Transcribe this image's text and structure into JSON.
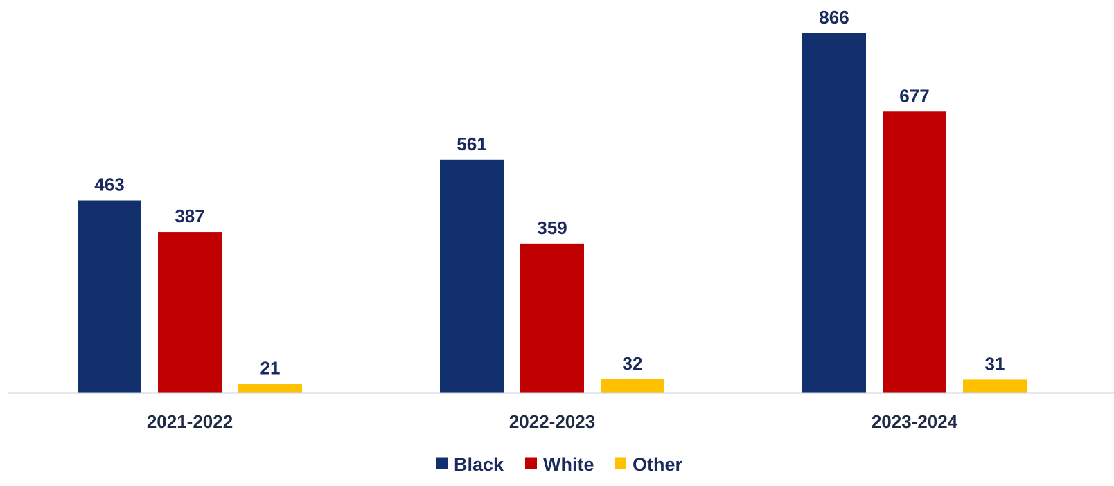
{
  "chart_data": {
    "type": "bar",
    "title": "",
    "xlabel": "",
    "ylabel": "",
    "categories": [
      "2021-2022",
      "2022-2023",
      "2023-2024"
    ],
    "series": [
      {
        "name": "Black",
        "color": "#12306e",
        "values": [
          463,
          561,
          866
        ]
      },
      {
        "name": "White",
        "color": "#c00000",
        "values": [
          387,
          359,
          677
        ]
      },
      {
        "name": "Other",
        "color": "#ffc000",
        "values": [
          21,
          32,
          31
        ]
      }
    ],
    "ylim": [
      0,
      866
    ],
    "grid": false,
    "legend_position": "bottom",
    "data_label_color": "#1a2a5c",
    "axis_color": "#c9d3e3"
  }
}
